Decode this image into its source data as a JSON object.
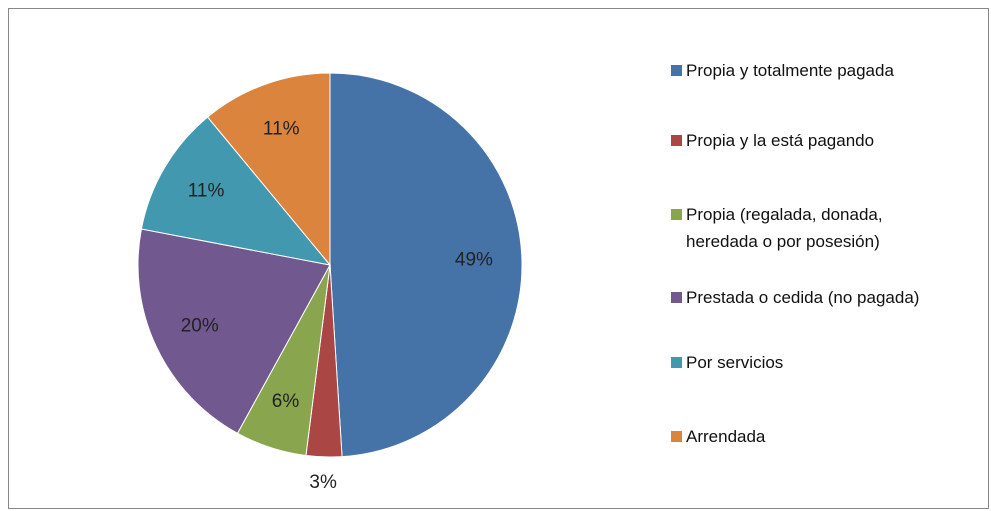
{
  "chart_data": {
    "type": "pie",
    "categories": [
      "Propia y totalmente pagada",
      "Propia y la está pagando",
      "Propia (regalada, donada, heredada o por posesión)",
      "Prestada o cedida (no pagada)",
      "Por servicios",
      "Arrendada"
    ],
    "values": [
      49,
      3,
      6,
      20,
      11,
      11
    ],
    "value_labels": [
      "49%",
      "3%",
      "6%",
      "20%",
      "11%",
      "11%"
    ],
    "colors": [
      "#4572a7",
      "#aa4643",
      "#89a54e",
      "#71588f",
      "#4198af",
      "#db843d"
    ],
    "legend": "right"
  }
}
